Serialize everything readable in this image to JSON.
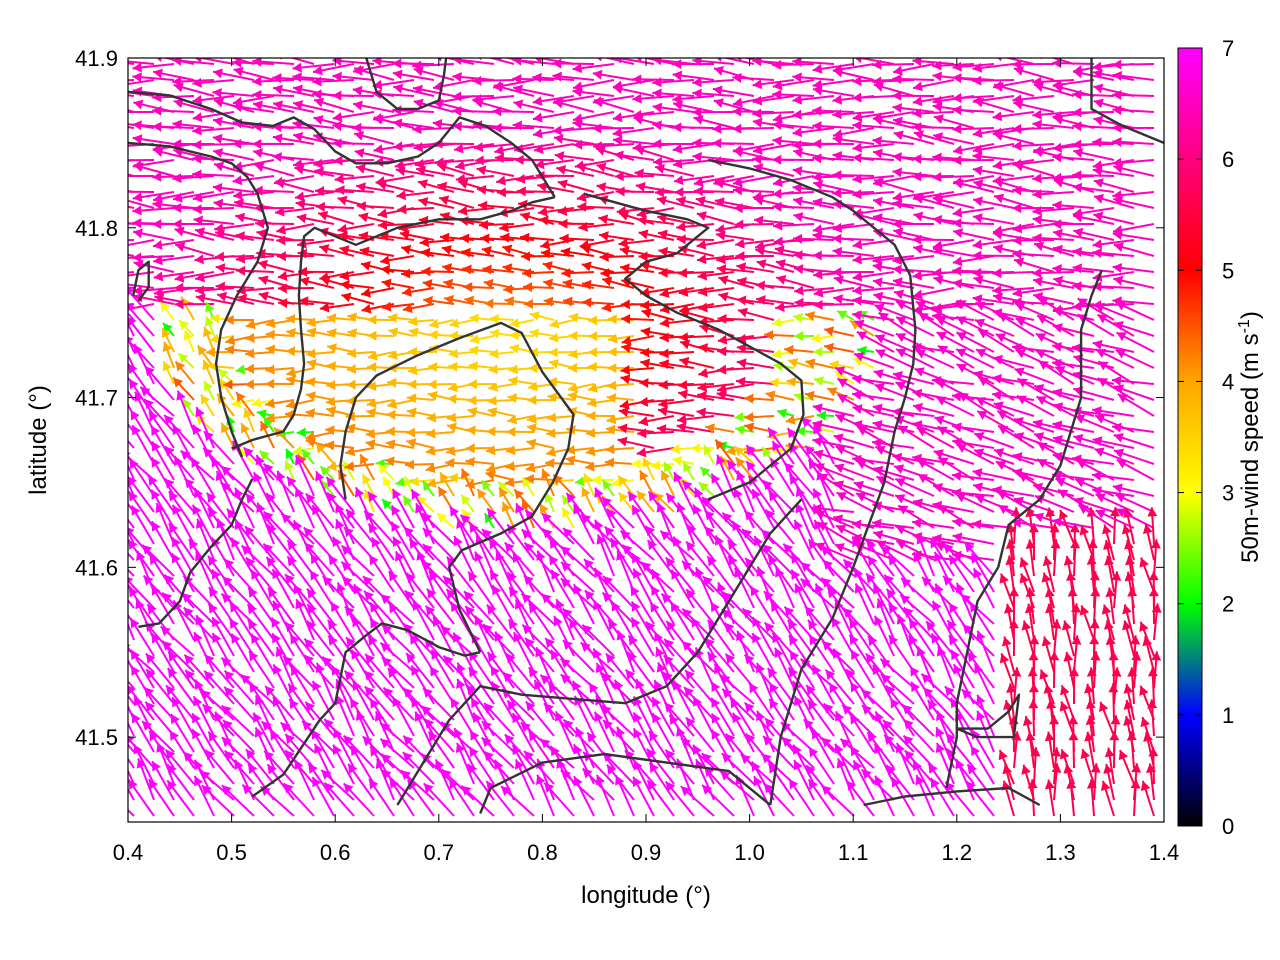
{
  "chart_data": {
    "type": "vector-field",
    "xlabel": "longitude (°)",
    "ylabel": "latitude (°)",
    "colorbar_label": "50m-wind speed (m s",
    "colorbar_label_sup": "-1",
    "colorbar_label_close": ")",
    "xlim": [
      0.4,
      1.4
    ],
    "ylim": [
      41.45,
      41.9
    ],
    "x_ticks": [
      0.4,
      0.5,
      0.6,
      0.7,
      0.8,
      0.9,
      1.0,
      1.1,
      1.2,
      1.3,
      1.4
    ],
    "x_tick_labels": [
      "0.4",
      "0.5",
      "0.6",
      "0.7",
      "0.8",
      "0.9",
      "1.0",
      "1.1",
      "1.2",
      "1.3",
      "1.4"
    ],
    "y_ticks": [
      41.5,
      41.6,
      41.7,
      41.8,
      41.9
    ],
    "y_tick_labels": [
      "41.5",
      "41.6",
      "41.7",
      "41.8",
      "41.9"
    ],
    "colorbar_ticks": [
      0,
      1,
      2,
      3,
      4,
      5,
      6,
      7
    ],
    "colorbar_tick_labels": [
      "0",
      "1",
      "2",
      "3",
      "4",
      "5",
      "6",
      "7"
    ],
    "colorbar_range": [
      0,
      7
    ],
    "colormap": [
      "#000000",
      "#0000ff",
      "#00ff00",
      "#ffff00",
      "#ffa500",
      "#ff0000",
      "#ff00ff"
    ],
    "grid": false,
    "legend": "none",
    "calm_center_lonlat": [
      0.78,
      41.74
    ],
    "contours": [
      [
        [
          0.4,
          41.85
        ],
        [
          0.44,
          41.848
        ],
        [
          0.48,
          41.842
        ],
        [
          0.5,
          41.838
        ],
        [
          0.515,
          41.83
        ],
        [
          0.525,
          41.82
        ],
        [
          0.535,
          41.8
        ],
        [
          0.525,
          41.78
        ],
        [
          0.505,
          41.76
        ],
        [
          0.49,
          41.74
        ],
        [
          0.485,
          41.72
        ],
        [
          0.49,
          41.7
        ],
        [
          0.5,
          41.68
        ],
        [
          0.51,
          41.665
        ]
      ],
      [
        [
          0.4,
          41.88
        ],
        [
          0.44,
          41.878
        ],
        [
          0.48,
          41.87
        ],
        [
          0.51,
          41.862
        ],
        [
          0.54,
          41.86
        ],
        [
          0.56,
          41.865
        ],
        [
          0.58,
          41.858
        ],
        [
          0.6,
          41.845
        ],
        [
          0.62,
          41.838
        ],
        [
          0.65,
          41.838
        ],
        [
          0.68,
          41.842
        ],
        [
          0.7,
          41.85
        ],
        [
          0.72,
          41.865
        ],
        [
          0.745,
          41.86
        ],
        [
          0.77,
          41.85
        ],
        [
          0.79,
          41.84
        ],
        [
          0.8,
          41.83
        ],
        [
          0.812,
          41.818
        ]
      ],
      [
        [
          0.41,
          41.757
        ],
        [
          0.42,
          41.765
        ],
        [
          0.42,
          41.78
        ],
        [
          0.41,
          41.775
        ],
        [
          0.405,
          41.76
        ]
      ],
      [
        [
          0.63,
          41.9
        ],
        [
          0.64,
          41.88
        ],
        [
          0.66,
          41.87
        ],
        [
          0.68,
          41.87
        ],
        [
          0.7,
          41.875
        ],
        [
          0.705,
          41.89
        ],
        [
          0.707,
          41.9
        ]
      ],
      [
        [
          0.812,
          41.818
        ],
        [
          0.79,
          41.815
        ],
        [
          0.77,
          41.81
        ],
        [
          0.74,
          41.805
        ],
        [
          0.7,
          41.805
        ],
        [
          0.66,
          41.8
        ],
        [
          0.64,
          41.795
        ],
        [
          0.62,
          41.79
        ],
        [
          0.6,
          41.795
        ],
        [
          0.58,
          41.8
        ],
        [
          0.57,
          41.795
        ],
        [
          0.567,
          41.78
        ],
        [
          0.565,
          41.76
        ],
        [
          0.567,
          41.74
        ],
        [
          0.57,
          41.72
        ],
        [
          0.567,
          41.705
        ],
        [
          0.56,
          41.69
        ],
        [
          0.55,
          41.68
        ],
        [
          0.52,
          41.675
        ],
        [
          0.5,
          41.67
        ]
      ],
      [
        [
          0.41,
          41.565
        ],
        [
          0.43,
          41.567
        ],
        [
          0.45,
          41.58
        ],
        [
          0.46,
          41.597
        ],
        [
          0.48,
          41.612
        ],
        [
          0.5,
          41.625
        ],
        [
          0.51,
          41.64
        ],
        [
          0.52,
          41.652
        ]
      ],
      [
        [
          0.52,
          41.465
        ],
        [
          0.55,
          41.478
        ],
        [
          0.585,
          41.51
        ],
        [
          0.6,
          41.52
        ],
        [
          0.61,
          41.55
        ],
        [
          0.63,
          41.56
        ],
        [
          0.645,
          41.567
        ],
        [
          0.67,
          41.563
        ],
        [
          0.7,
          41.553
        ],
        [
          0.725,
          41.548
        ],
        [
          0.74,
          41.55
        ]
      ],
      [
        [
          0.74,
          41.55
        ],
        [
          0.72,
          41.575
        ],
        [
          0.71,
          41.6
        ],
        [
          0.722,
          41.61
        ],
        [
          0.76,
          41.62
        ],
        [
          0.79,
          41.63
        ],
        [
          0.81,
          41.65
        ],
        [
          0.825,
          41.67
        ],
        [
          0.83,
          41.69
        ],
        [
          0.8,
          41.715
        ],
        [
          0.78,
          41.738
        ],
        [
          0.76,
          41.744
        ],
        [
          0.72,
          41.735
        ],
        [
          0.68,
          41.725
        ],
        [
          0.64,
          41.713
        ],
        [
          0.62,
          41.7
        ],
        [
          0.61,
          41.68
        ],
        [
          0.605,
          41.66
        ],
        [
          0.61,
          41.64
        ]
      ],
      [
        [
          0.84,
          41.82
        ],
        [
          0.87,
          41.815
        ],
        [
          0.9,
          41.81
        ],
        [
          0.94,
          41.805
        ],
        [
          0.96,
          41.8
        ],
        [
          0.93,
          41.785
        ],
        [
          0.9,
          41.78
        ],
        [
          0.88,
          41.77
        ],
        [
          0.9,
          41.76
        ],
        [
          0.93,
          41.75
        ],
        [
          0.97,
          41.74
        ],
        [
          1.0,
          41.73
        ],
        [
          1.03,
          41.72
        ],
        [
          1.05,
          41.71
        ],
        [
          1.052,
          41.69
        ],
        [
          1.04,
          41.67
        ],
        [
          1.02,
          41.66
        ],
        [
          1.0,
          41.65
        ],
        [
          0.96,
          41.64
        ]
      ],
      [
        [
          0.96,
          41.84
        ],
        [
          1.0,
          41.835
        ],
        [
          1.04,
          41.828
        ],
        [
          1.08,
          41.818
        ],
        [
          1.1,
          41.81
        ],
        [
          1.12,
          41.8
        ],
        [
          1.14,
          41.79
        ],
        [
          1.155,
          41.772
        ],
        [
          1.16,
          41.74
        ],
        [
          1.158,
          41.72
        ],
        [
          1.15,
          41.7
        ],
        [
          1.14,
          41.68
        ],
        [
          1.13,
          41.65
        ],
        [
          1.1,
          41.6
        ],
        [
          1.08,
          41.57
        ],
        [
          1.05,
          41.54
        ],
        [
          1.03,
          41.5
        ],
        [
          1.02,
          41.46
        ]
      ],
      [
        [
          1.34,
          41.775
        ],
        [
          1.33,
          41.76
        ],
        [
          1.32,
          41.74
        ],
        [
          1.32,
          41.72
        ],
        [
          1.32,
          41.7
        ],
        [
          1.31,
          41.68
        ],
        [
          1.3,
          41.66
        ],
        [
          1.28,
          41.64
        ],
        [
          1.25,
          41.625
        ],
        [
          1.24,
          41.6
        ],
        [
          1.22,
          41.58
        ],
        [
          1.21,
          41.55
        ],
        [
          1.2,
          41.52
        ],
        [
          1.2,
          41.5
        ],
        [
          1.19,
          41.47
        ]
      ],
      [
        [
          1.2,
          41.505
        ],
        [
          1.23,
          41.505
        ],
        [
          1.25,
          41.515
        ],
        [
          1.26,
          41.525
        ],
        [
          1.255,
          41.5
        ],
        [
          1.22,
          41.5
        ],
        [
          1.2,
          41.505
        ]
      ],
      [
        [
          1.33,
          41.9
        ],
        [
          1.33,
          41.87
        ],
        [
          1.36,
          41.86
        ],
        [
          1.4,
          41.85
        ]
      ],
      [
        [
          1.11,
          41.46
        ],
        [
          1.15,
          41.465
        ],
        [
          1.2,
          41.468
        ],
        [
          1.25,
          41.47
        ],
        [
          1.28,
          41.46
        ]
      ],
      [
        [
          0.74,
          41.455
        ],
        [
          0.75,
          41.47
        ],
        [
          0.8,
          41.485
        ],
        [
          0.86,
          41.49
        ],
        [
          0.92,
          41.485
        ],
        [
          0.98,
          41.48
        ],
        [
          1.02,
          41.46
        ]
      ],
      [
        [
          0.66,
          41.46
        ],
        [
          0.68,
          41.48
        ],
        [
          0.71,
          41.51
        ],
        [
          0.74,
          41.53
        ],
        [
          0.78,
          41.525
        ],
        [
          0.84,
          41.522
        ],
        [
          0.88,
          41.52
        ],
        [
          0.92,
          41.53
        ],
        [
          0.95,
          41.55
        ],
        [
          0.97,
          41.57
        ],
        [
          1.0,
          41.6
        ],
        [
          1.02,
          41.62
        ],
        [
          1.05,
          41.64
        ]
      ]
    ]
  }
}
